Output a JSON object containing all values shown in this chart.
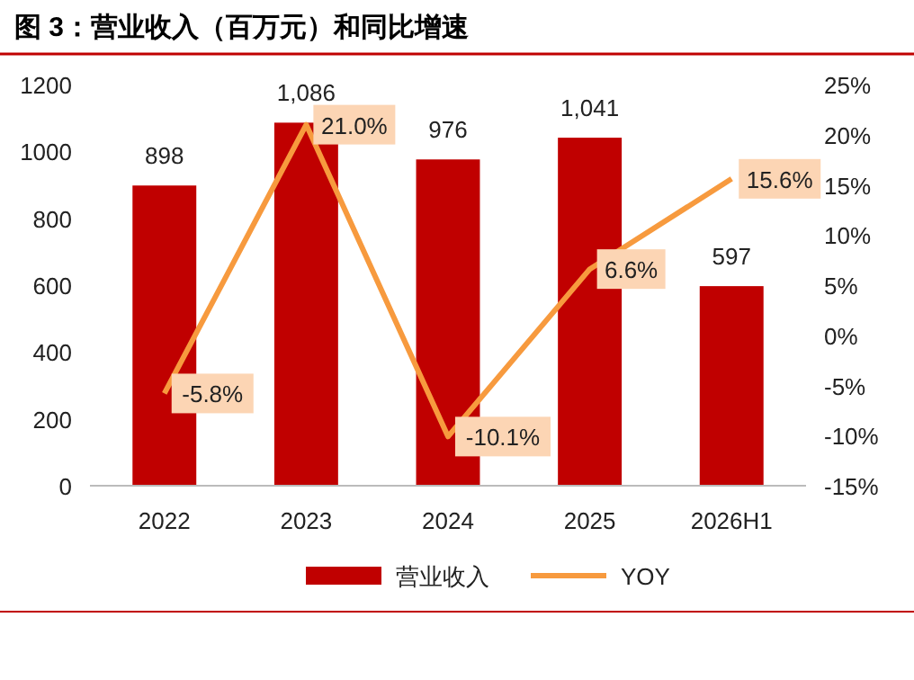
{
  "chart_data": {
    "type": "bar",
    "title": "图 3：营业收入（百万元）和同比增速",
    "categories": [
      "2022",
      "2023",
      "2024",
      "2025",
      "2026H1"
    ],
    "series": [
      {
        "name": "营业收入",
        "color": "#c00000",
        "values": [
          898,
          1086,
          976,
          1041,
          597
        ],
        "value_labels": [
          "898",
          "1,086",
          "976",
          "1,041",
          "597"
        ]
      },
      {
        "name": "YOY",
        "type": "line",
        "axis": "y2",
        "color": "#f79a3e",
        "values": [
          -5.8,
          21.0,
          -10.1,
          6.6,
          15.6
        ],
        "value_labels": [
          "-5.8%",
          "21.0%",
          "-10.1%",
          "6.6%",
          "15.6%"
        ]
      }
    ],
    "ylim": [
      0,
      1200
    ],
    "yticks": [
      0,
      200,
      400,
      600,
      800,
      1000,
      1200
    ],
    "y2lim": [
      -15,
      25
    ],
    "y2ticks": [
      {
        "value": -15,
        "label": "-15%"
      },
      {
        "value": -10,
        "label": "-10%"
      },
      {
        "value": -5,
        "label": "-5%"
      },
      {
        "value": 0,
        "label": "0%"
      },
      {
        "value": 5,
        "label": "5%"
      },
      {
        "value": 10,
        "label": "10%"
      },
      {
        "value": 15,
        "label": "15%"
      },
      {
        "value": 20,
        "label": "20%"
      },
      {
        "value": 25,
        "label": "25%"
      }
    ],
    "grid": false,
    "legend": "bottom",
    "marker": "none",
    "line_style": "solid"
  }
}
